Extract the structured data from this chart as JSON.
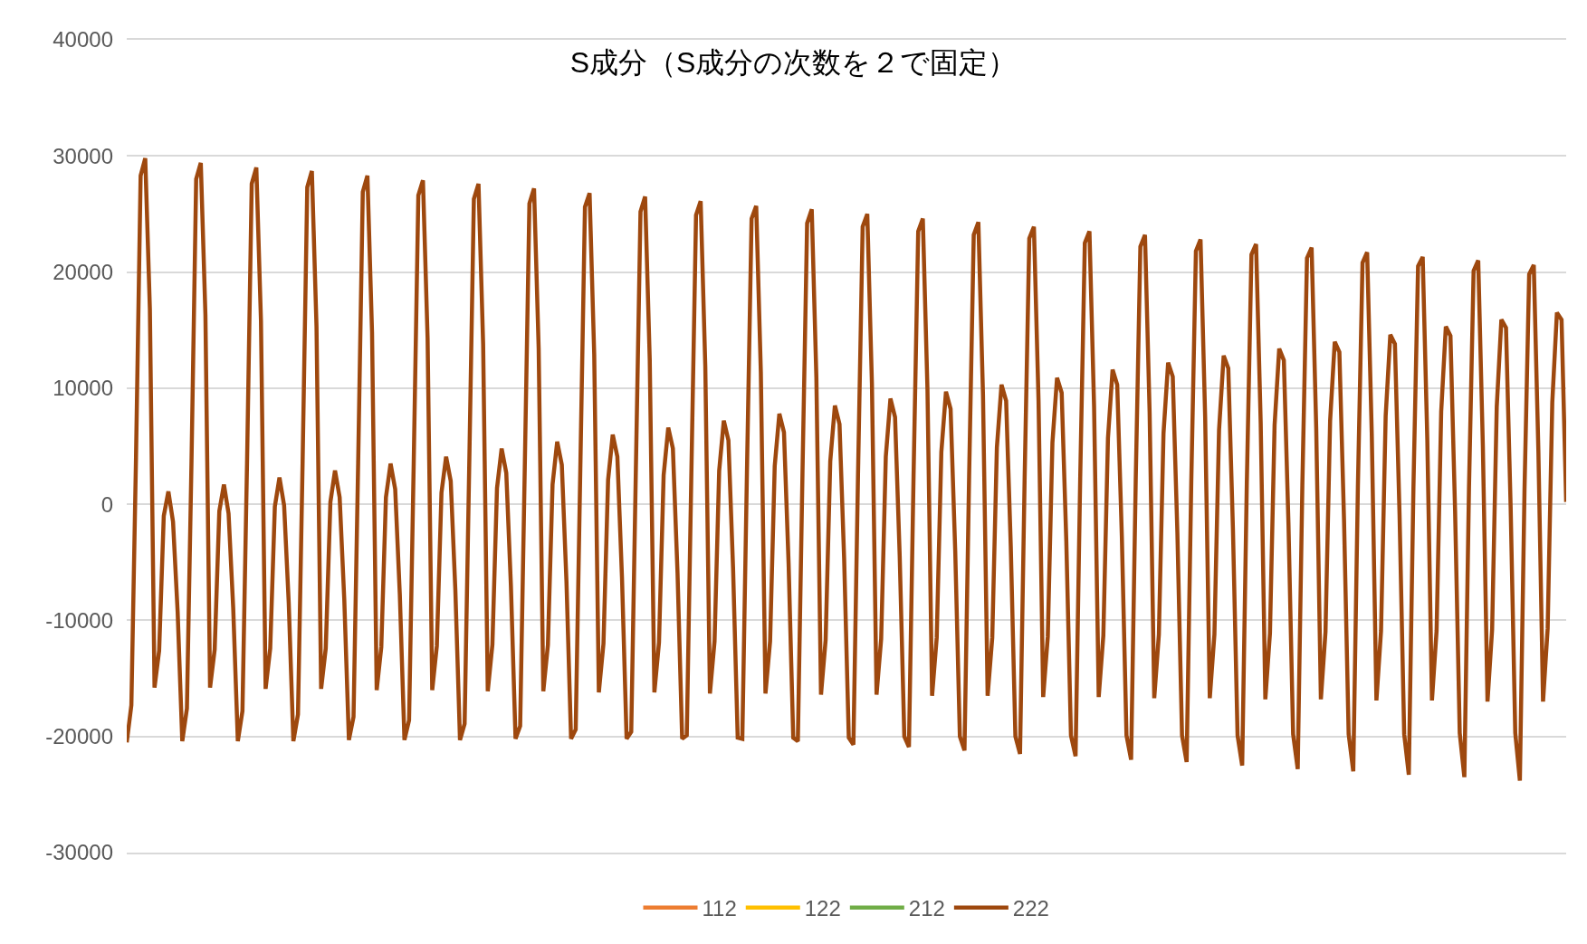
{
  "chart_data": {
    "type": "line",
    "title": "S成分（S成分の次数を２で固定）",
    "categories": [
      null,
      null,
      null,
      null,
      null,
      null,
      null,
      null,
      null,
      null,
      null,
      null,
      null,
      null,
      null,
      null,
      null,
      null,
      null,
      null,
      null,
      null,
      null,
      null,
      null,
      null,
      null,
      null,
      null,
      null,
      null,
      null,
      null,
      null,
      null,
      null,
      null,
      null,
      null,
      null,
      null,
      null,
      null,
      null,
      null,
      null,
      null,
      null,
      null,
      null,
      null,
      null,
      null,
      null,
      null,
      null,
      null,
      null,
      null,
      null,
      null,
      null,
      null,
      null,
      null,
      null,
      null,
      null,
      null,
      null,
      null,
      null,
      null,
      null,
      null,
      null,
      null,
      null,
      null,
      null,
      null,
      null,
      null,
      null,
      null,
      null,
      null,
      null,
      null,
      null,
      null,
      null,
      null,
      null,
      null,
      null,
      null,
      null,
      null,
      null,
      null,
      null,
      null,
      null,
      null,
      null,
      null,
      null,
      null,
      null,
      null,
      null,
      null,
      null,
      null,
      null,
      null,
      null,
      null,
      null,
      null,
      null,
      null,
      null,
      null,
      null,
      null,
      null,
      null,
      null,
      null,
      null,
      null,
      null,
      null,
      null,
      null,
      null,
      null,
      null,
      null,
      null,
      null,
      null,
      null,
      null,
      null,
      null,
      null,
      null,
      null,
      null,
      null,
      null,
      null,
      null,
      null,
      null,
      null,
      null,
      null,
      null,
      null,
      null,
      null,
      null,
      null,
      null,
      null,
      null,
      null,
      null,
      null,
      null,
      null,
      null,
      null,
      null,
      null,
      null,
      null,
      null,
      null,
      null,
      null,
      null,
      null,
      null,
      null,
      null,
      null,
      null,
      null,
      null,
      null,
      null,
      null,
      null,
      null,
      null,
      null,
      null,
      null,
      null,
      null,
      null,
      null,
      null,
      null,
      null,
      null,
      null,
      null,
      null,
      null,
      null,
      null,
      null,
      null,
      null,
      null,
      null,
      null,
      null,
      null,
      null,
      null,
      null,
      null,
      null,
      null,
      null,
      null,
      null,
      null,
      null,
      null,
      null,
      null,
      null,
      null,
      null,
      null,
      null,
      null,
      null,
      null,
      null,
      null,
      null,
      null,
      null,
      null,
      null,
      null,
      null,
      null,
      null,
      null,
      null,
      null,
      null,
      null,
      null,
      null,
      null,
      null,
      null,
      null,
      null,
      null,
      null,
      null,
      null,
      null,
      null,
      null,
      null,
      null,
      null,
      null,
      null,
      null,
      null,
      null,
      null,
      null,
      null,
      null,
      null,
      null,
      null,
      null,
      null,
      null,
      null,
      null,
      null,
      null,
      null,
      null,
      null,
      null,
      null,
      null,
      null,
      null,
      null,
      null,
      null,
      null,
      null
    ],
    "series": [
      {
        "name": "112",
        "color": "#ed7d31",
        "values": [
          null,
          null,
          null,
          null,
          null,
          null,
          null,
          null,
          null,
          null,
          null,
          null,
          null,
          null,
          null,
          null,
          null,
          null,
          null,
          null,
          null,
          null,
          null,
          null,
          null,
          null,
          null,
          null,
          null,
          null,
          null,
          null,
          null,
          null,
          null,
          null,
          null,
          null,
          null,
          null,
          null,
          null,
          null,
          null,
          null,
          null,
          null,
          null,
          null,
          null,
          null,
          null,
          null,
          null,
          null,
          null,
          null,
          null,
          null,
          null,
          null,
          null,
          null,
          null,
          null,
          null,
          null,
          null,
          null,
          null,
          null,
          null,
          null,
          null,
          null,
          null,
          null,
          null,
          null,
          null,
          null,
          null,
          null,
          null,
          null,
          null,
          null,
          null,
          null,
          null,
          null,
          null,
          null,
          null,
          null,
          null,
          null,
          null,
          null,
          null,
          null,
          null,
          null,
          null,
          null,
          null,
          null,
          null,
          null,
          null,
          null,
          null,
          null,
          null,
          null,
          null,
          null,
          null,
          null,
          null,
          null,
          null,
          null,
          null,
          null,
          null,
          null,
          null,
          null,
          null,
          null,
          null,
          null,
          null,
          null,
          null,
          null,
          null,
          null,
          null,
          null,
          null,
          null,
          null,
          null,
          null,
          null,
          null,
          null,
          null,
          null,
          null,
          null,
          null,
          null,
          null,
          null,
          null,
          null,
          null,
          null,
          null,
          null,
          null,
          null,
          null,
          null,
          null,
          null,
          null,
          null,
          null,
          null,
          null,
          null,
          null,
          null,
          null,
          null,
          null,
          null,
          null,
          null,
          null,
          null,
          null,
          null,
          null,
          null,
          null,
          null,
          null,
          null,
          null,
          null,
          null,
          null,
          null,
          null,
          null,
          null,
          null,
          null,
          null,
          null,
          null,
          null,
          null,
          null,
          null,
          null,
          null,
          null,
          null,
          null,
          null,
          null,
          null,
          null,
          null,
          null,
          null,
          null,
          null,
          null,
          null,
          null,
          null,
          null,
          null,
          null,
          null,
          null,
          null,
          null,
          null,
          null,
          null,
          null,
          null,
          null,
          null,
          null,
          null,
          null,
          null,
          null,
          null,
          null,
          null,
          null,
          null,
          null,
          null,
          null,
          null,
          null,
          null,
          null,
          null,
          null,
          null,
          null,
          null,
          null,
          null,
          null,
          null,
          null,
          null,
          null,
          null,
          null,
          null,
          null,
          null,
          null,
          null,
          null,
          null,
          null,
          null,
          null,
          null,
          null,
          null,
          null,
          null,
          null,
          null,
          null,
          null,
          null,
          null,
          null,
          null,
          null,
          null,
          null,
          null,
          null,
          null,
          null,
          null,
          null,
          null,
          null,
          null,
          null,
          null,
          null,
          null
        ]
      },
      {
        "name": "122",
        "color": "#ffc000",
        "values": [
          null,
          null,
          null,
          null,
          null,
          null,
          null,
          null,
          null,
          null,
          null,
          null,
          null,
          null,
          null,
          null,
          null,
          null,
          null,
          null,
          null,
          null,
          null,
          null,
          null,
          null,
          null,
          null,
          null,
          null,
          null,
          null,
          null,
          null,
          null,
          null,
          null,
          null,
          null,
          null,
          null,
          null,
          null,
          null,
          null,
          null,
          null,
          null,
          null,
          null,
          null,
          null,
          null,
          null,
          null,
          null,
          null,
          null,
          null,
          null,
          null,
          null,
          null,
          null,
          null,
          null,
          null,
          null,
          null,
          null,
          null,
          null,
          null,
          null,
          null,
          null,
          null,
          null,
          null,
          null,
          null,
          null,
          null,
          null,
          null,
          null,
          null,
          null,
          null,
          null,
          null,
          null,
          null,
          null,
          null,
          null,
          null,
          null,
          null,
          null,
          null,
          null,
          null,
          null,
          null,
          null,
          null,
          null,
          null,
          null,
          null,
          null,
          null,
          null,
          null,
          null,
          null,
          null,
          null,
          null,
          null,
          null,
          null,
          null,
          null,
          null,
          null,
          null,
          null,
          null,
          null,
          null,
          null,
          null,
          null,
          null,
          null,
          null,
          null,
          null,
          null,
          null,
          null,
          null,
          null,
          null,
          null,
          null,
          null,
          null,
          null,
          null,
          null,
          null,
          null,
          null,
          null,
          null,
          null,
          null,
          null,
          null,
          null,
          null,
          null,
          null,
          null,
          null,
          null,
          null,
          null,
          null,
          null,
          null,
          null,
          null,
          null,
          null,
          null,
          null,
          null,
          null,
          null,
          null,
          null,
          null,
          null,
          null,
          null,
          null,
          null,
          null,
          null,
          null,
          null,
          null,
          null,
          null,
          null,
          null,
          null,
          null,
          null,
          null,
          null,
          null,
          null,
          null,
          null,
          null,
          null,
          null,
          null,
          null,
          null,
          null,
          null,
          null,
          null,
          null,
          null,
          null,
          null,
          null,
          null,
          null,
          null,
          null,
          null,
          null,
          null,
          null,
          null,
          null,
          null,
          null,
          null,
          null,
          null,
          null,
          null,
          null,
          null,
          null,
          null,
          null,
          null,
          null,
          null,
          null,
          null,
          null,
          null,
          null,
          null,
          null,
          null,
          null,
          null,
          null,
          null,
          null,
          null,
          null,
          null,
          null,
          null,
          null,
          null,
          null,
          null,
          null,
          null,
          null,
          null,
          null,
          null,
          null,
          null,
          null,
          null,
          null,
          null,
          null,
          null,
          null,
          null,
          null,
          null,
          null,
          null,
          null,
          null,
          null,
          null,
          null,
          null,
          null,
          null,
          null,
          null,
          null,
          null,
          null,
          null,
          null,
          null,
          null,
          null,
          null,
          null,
          null
        ]
      },
      {
        "name": "212",
        "color": "#70ad47",
        "values": [
          null,
          null,
          null,
          null,
          null,
          null,
          null,
          null,
          null,
          null,
          null,
          null,
          null,
          null,
          null,
          null,
          null,
          null,
          null,
          null,
          null,
          null,
          null,
          null,
          null,
          null,
          null,
          null,
          null,
          null,
          null,
          null,
          null,
          null,
          null,
          null,
          null,
          null,
          null,
          null,
          null,
          null,
          null,
          null,
          null,
          null,
          null,
          null,
          null,
          null,
          null,
          null,
          null,
          null,
          null,
          null,
          null,
          null,
          null,
          null,
          null,
          null,
          null,
          null,
          null,
          null,
          null,
          null,
          null,
          null,
          null,
          null,
          null,
          null,
          null,
          null,
          null,
          null,
          null,
          null,
          null,
          null,
          null,
          null,
          null,
          null,
          null,
          null,
          null,
          null,
          null,
          null,
          null,
          null,
          null,
          null,
          null,
          null,
          null,
          null,
          null,
          null,
          null,
          null,
          null,
          null,
          null,
          null,
          null,
          null,
          null,
          null,
          null,
          null,
          null,
          null,
          null,
          null,
          null,
          null,
          null,
          null,
          null,
          null,
          null,
          null,
          null,
          null,
          null,
          null,
          null,
          null,
          null,
          null,
          null,
          null,
          null,
          null,
          null,
          null,
          null,
          null,
          null,
          null,
          null,
          null,
          null,
          null,
          null,
          null,
          null,
          null,
          null,
          null,
          null,
          null,
          null,
          null,
          null,
          null,
          null,
          null,
          null,
          null,
          null,
          null,
          null,
          null,
          null,
          null,
          null,
          null,
          null,
          null,
          null,
          null,
          null,
          null,
          null,
          null,
          null,
          null,
          null,
          null,
          null,
          null,
          null,
          null,
          null,
          null,
          null,
          null,
          null,
          null,
          null,
          null,
          null,
          null,
          null,
          null,
          null,
          null,
          null,
          null,
          null,
          null,
          null,
          null,
          null,
          null,
          null,
          null,
          null,
          null,
          null,
          null,
          null,
          null,
          null,
          null,
          null,
          null,
          null,
          null,
          null,
          null,
          null,
          null,
          null,
          null,
          null,
          null,
          null,
          null,
          null,
          null,
          null,
          null,
          null,
          null,
          null,
          null,
          null,
          null,
          null,
          null,
          null,
          null,
          null,
          null,
          null,
          null,
          null,
          null,
          null,
          null,
          null,
          null,
          null,
          null,
          null,
          null,
          null,
          null,
          null,
          null,
          null,
          null,
          null,
          null,
          null,
          null,
          null,
          null,
          null,
          null,
          null,
          null,
          null,
          null,
          null,
          null,
          null,
          null,
          null,
          null,
          null,
          null,
          null,
          null,
          null,
          null,
          null,
          null,
          null,
          null,
          null,
          null,
          null,
          null,
          null,
          null,
          null,
          null,
          null,
          null,
          null,
          null,
          null,
          null,
          null,
          null
        ]
      },
      {
        "name": "222",
        "color": "#9e480e",
        "values": [
          -20500,
          -17300,
          4000,
          28300,
          29800,
          16800,
          -15800,
          -12600,
          -1000,
          1100,
          -1500,
          -9300,
          -20400,
          -17600,
          3900,
          28000,
          29400,
          16300,
          -15800,
          -12500,
          -600,
          1700,
          -800,
          -8900,
          -20400,
          -17800,
          3800,
          27600,
          29000,
          15800,
          -15900,
          -12400,
          -200,
          2300,
          -100,
          -8500,
          -20400,
          -18100,
          3700,
          27300,
          28700,
          15300,
          -15900,
          -12400,
          200,
          2900,
          600,
          -8200,
          -20300,
          -18300,
          3600,
          26900,
          28300,
          14800,
          -16000,
          -12300,
          600,
          3500,
          1300,
          -7800,
          -20300,
          -18600,
          3500,
          26600,
          27900,
          14300,
          -16000,
          -12200,
          1000,
          4100,
          2000,
          -7400,
          -20300,
          -18900,
          3400,
          26300,
          27600,
          13800,
          -16100,
          -12100,
          1400,
          4800,
          2700,
          -7000,
          -20200,
          -19100,
          3200,
          25900,
          27200,
          13400,
          -16100,
          -12100,
          1700,
          5400,
          3400,
          -6600,
          -20200,
          -19400,
          3100,
          25600,
          26800,
          12900,
          -16200,
          -12000,
          2100,
          6000,
          4100,
          -6300,
          -20200,
          -19600,
          3000,
          25200,
          26500,
          12400,
          -16200,
          -11900,
          2500,
          6600,
          4800,
          -5900,
          -20200,
          -19900,
          2900,
          24900,
          26100,
          11900,
          -16300,
          -11800,
          2900,
          7200,
          5500,
          -5500,
          -20100,
          -20200,
          2800,
          24600,
          25700,
          11400,
          -16300,
          -11800,
          3300,
          7800,
          6200,
          -5100,
          -20100,
          -20400,
          2700,
          24200,
          25400,
          10900,
          -16400,
          -11700,
          3700,
          8500,
          6900,
          -4700,
          -20100,
          -20700,
          2600,
          23900,
          25000,
          10400,
          -16400,
          -11600,
          4100,
          9100,
          7500,
          -4400,
          -20000,
          -20900,
          2500,
          23500,
          24600,
          9900,
          -16500,
          -11500,
          4500,
          9700,
          8200,
          -4000,
          -20000,
          -21200,
          2400,
          23200,
          24300,
          9400,
          -16500,
          -11500,
          4900,
          10300,
          8900,
          -3600,
          -20000,
          -21500,
          2300,
          22900,
          23900,
          8900,
          -16600,
          -11400,
          5300,
          10900,
          9600,
          -3200,
          -19900,
          -21700,
          2200,
          22500,
          23500,
          8400,
          -16600,
          -11300,
          5700,
          11600,
          10300,
          -2800,
          -19900,
          -22000,
          2100,
          22200,
          23200,
          7900,
          -16700,
          -11200,
          6100,
          12200,
          11000,
          -2500,
          -19900,
          -22200,
          1900,
          21800,
          22800,
          7500,
          -16700,
          -11200,
          6400,
          12800,
          11700,
          -2100,
          -19900,
          -22500,
          1800,
          21500,
          22400,
          7000,
          -16800,
          -11100,
          6800,
          13400,
          12400,
          -1700,
          -19800,
          -22800,
          1700,
          21200,
          22100,
          6500,
          -16800,
          -11000,
          7200,
          14000,
          13100,
          -1300,
          -19800,
          -23000,
          1600,
          20800,
          21700,
          6000,
          -16900,
          -10900,
          7600,
          14600,
          13800,
          -900,
          -19800,
          -23300,
          1500,
          20500,
          21300,
          5500,
          -16900,
          -10900,
          8000,
          15300,
          14500,
          -600,
          -19700,
          -23500,
          1400,
          20100,
          21000,
          5000,
          -17000,
          -10800,
          8400,
          15900,
          15200,
          -200,
          -19700,
          -23800,
          1300,
          19800,
          20600,
          4500,
          -17000,
          -10700,
          8800,
          16500,
          15900,
          200
        ]
      }
    ],
    "ylim": [
      -30000,
      40000
    ],
    "yticks": [
      -30000,
      -20000,
      -10000,
      0,
      10000,
      20000,
      30000,
      40000
    ],
    "grid": "y",
    "legend": "bottom",
    "tick_labels": "y"
  }
}
